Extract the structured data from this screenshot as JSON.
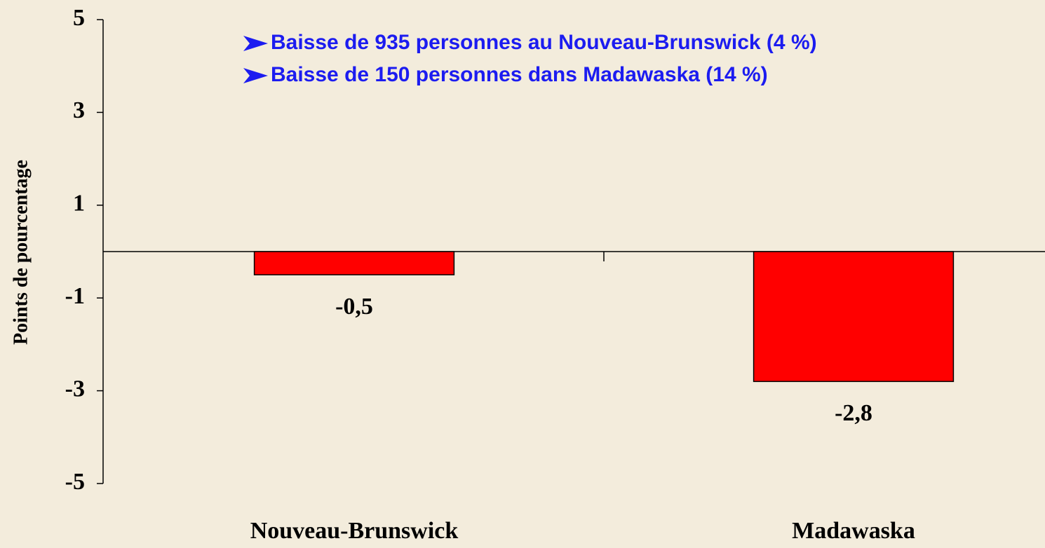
{
  "chart_data": {
    "type": "bar",
    "y_label": "Points de pourcentage",
    "annotations": [
      "Baisse de 935 personnes au Nouveau-Brunswick (4 %)",
      "Baisse de 150 personnes dans Madawaska (14 %)"
    ],
    "categories": [
      "Nouveau-Brunswick",
      "Madawaska"
    ],
    "values": [
      -0.5,
      -2.8
    ],
    "value_labels": [
      "-0,5",
      "-2,8"
    ],
    "color": "#ff0000",
    "ylim": [
      -5,
      5
    ],
    "yticks": [
      5,
      3,
      1,
      -1,
      -3,
      -5
    ]
  }
}
